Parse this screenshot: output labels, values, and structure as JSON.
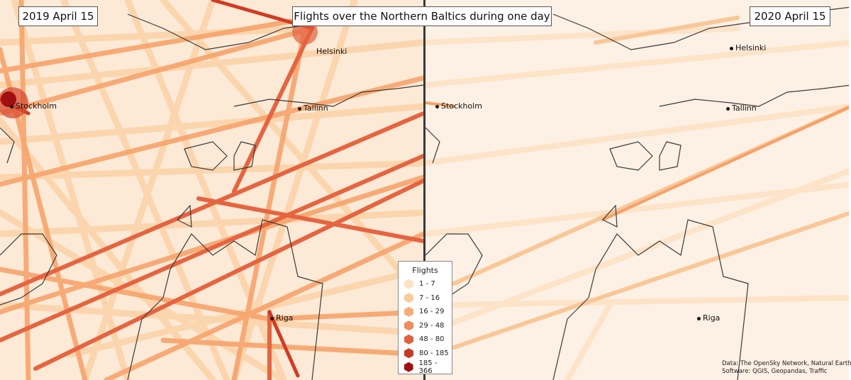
{
  "header": {
    "title": "Flights over the Northern Baltics during one day",
    "left_date": "2019 April 15",
    "right_date": "2020 April 15"
  },
  "cities": {
    "stockholm": "Stockholm",
    "helsinki": "Helsinki",
    "tallinn": "Tallinn",
    "riga": "Riga"
  },
  "legend": {
    "title": "Flights",
    "items": [
      {
        "label": "1 - 7",
        "color": "#fde3c2"
      },
      {
        "label": "7 - 16",
        "color": "#fbcc99"
      },
      {
        "label": "16 - 29",
        "color": "#f8ad76"
      },
      {
        "label": "29 - 48",
        "color": "#f28a5a"
      },
      {
        "label": "48 - 80",
        "color": "#e3613f"
      },
      {
        "label": "80 - 185",
        "color": "#c73925"
      },
      {
        "label": "185 - 366",
        "color": "#a01010"
      }
    ]
  },
  "credits": {
    "line1": "Data: The OpenSky Network, Natural Earth",
    "line2": "Software: QGIS, Geopandas, Traffic"
  },
  "colors": {
    "sea_background": "#fdf0e4",
    "coastline": "#3a3a3a"
  }
}
